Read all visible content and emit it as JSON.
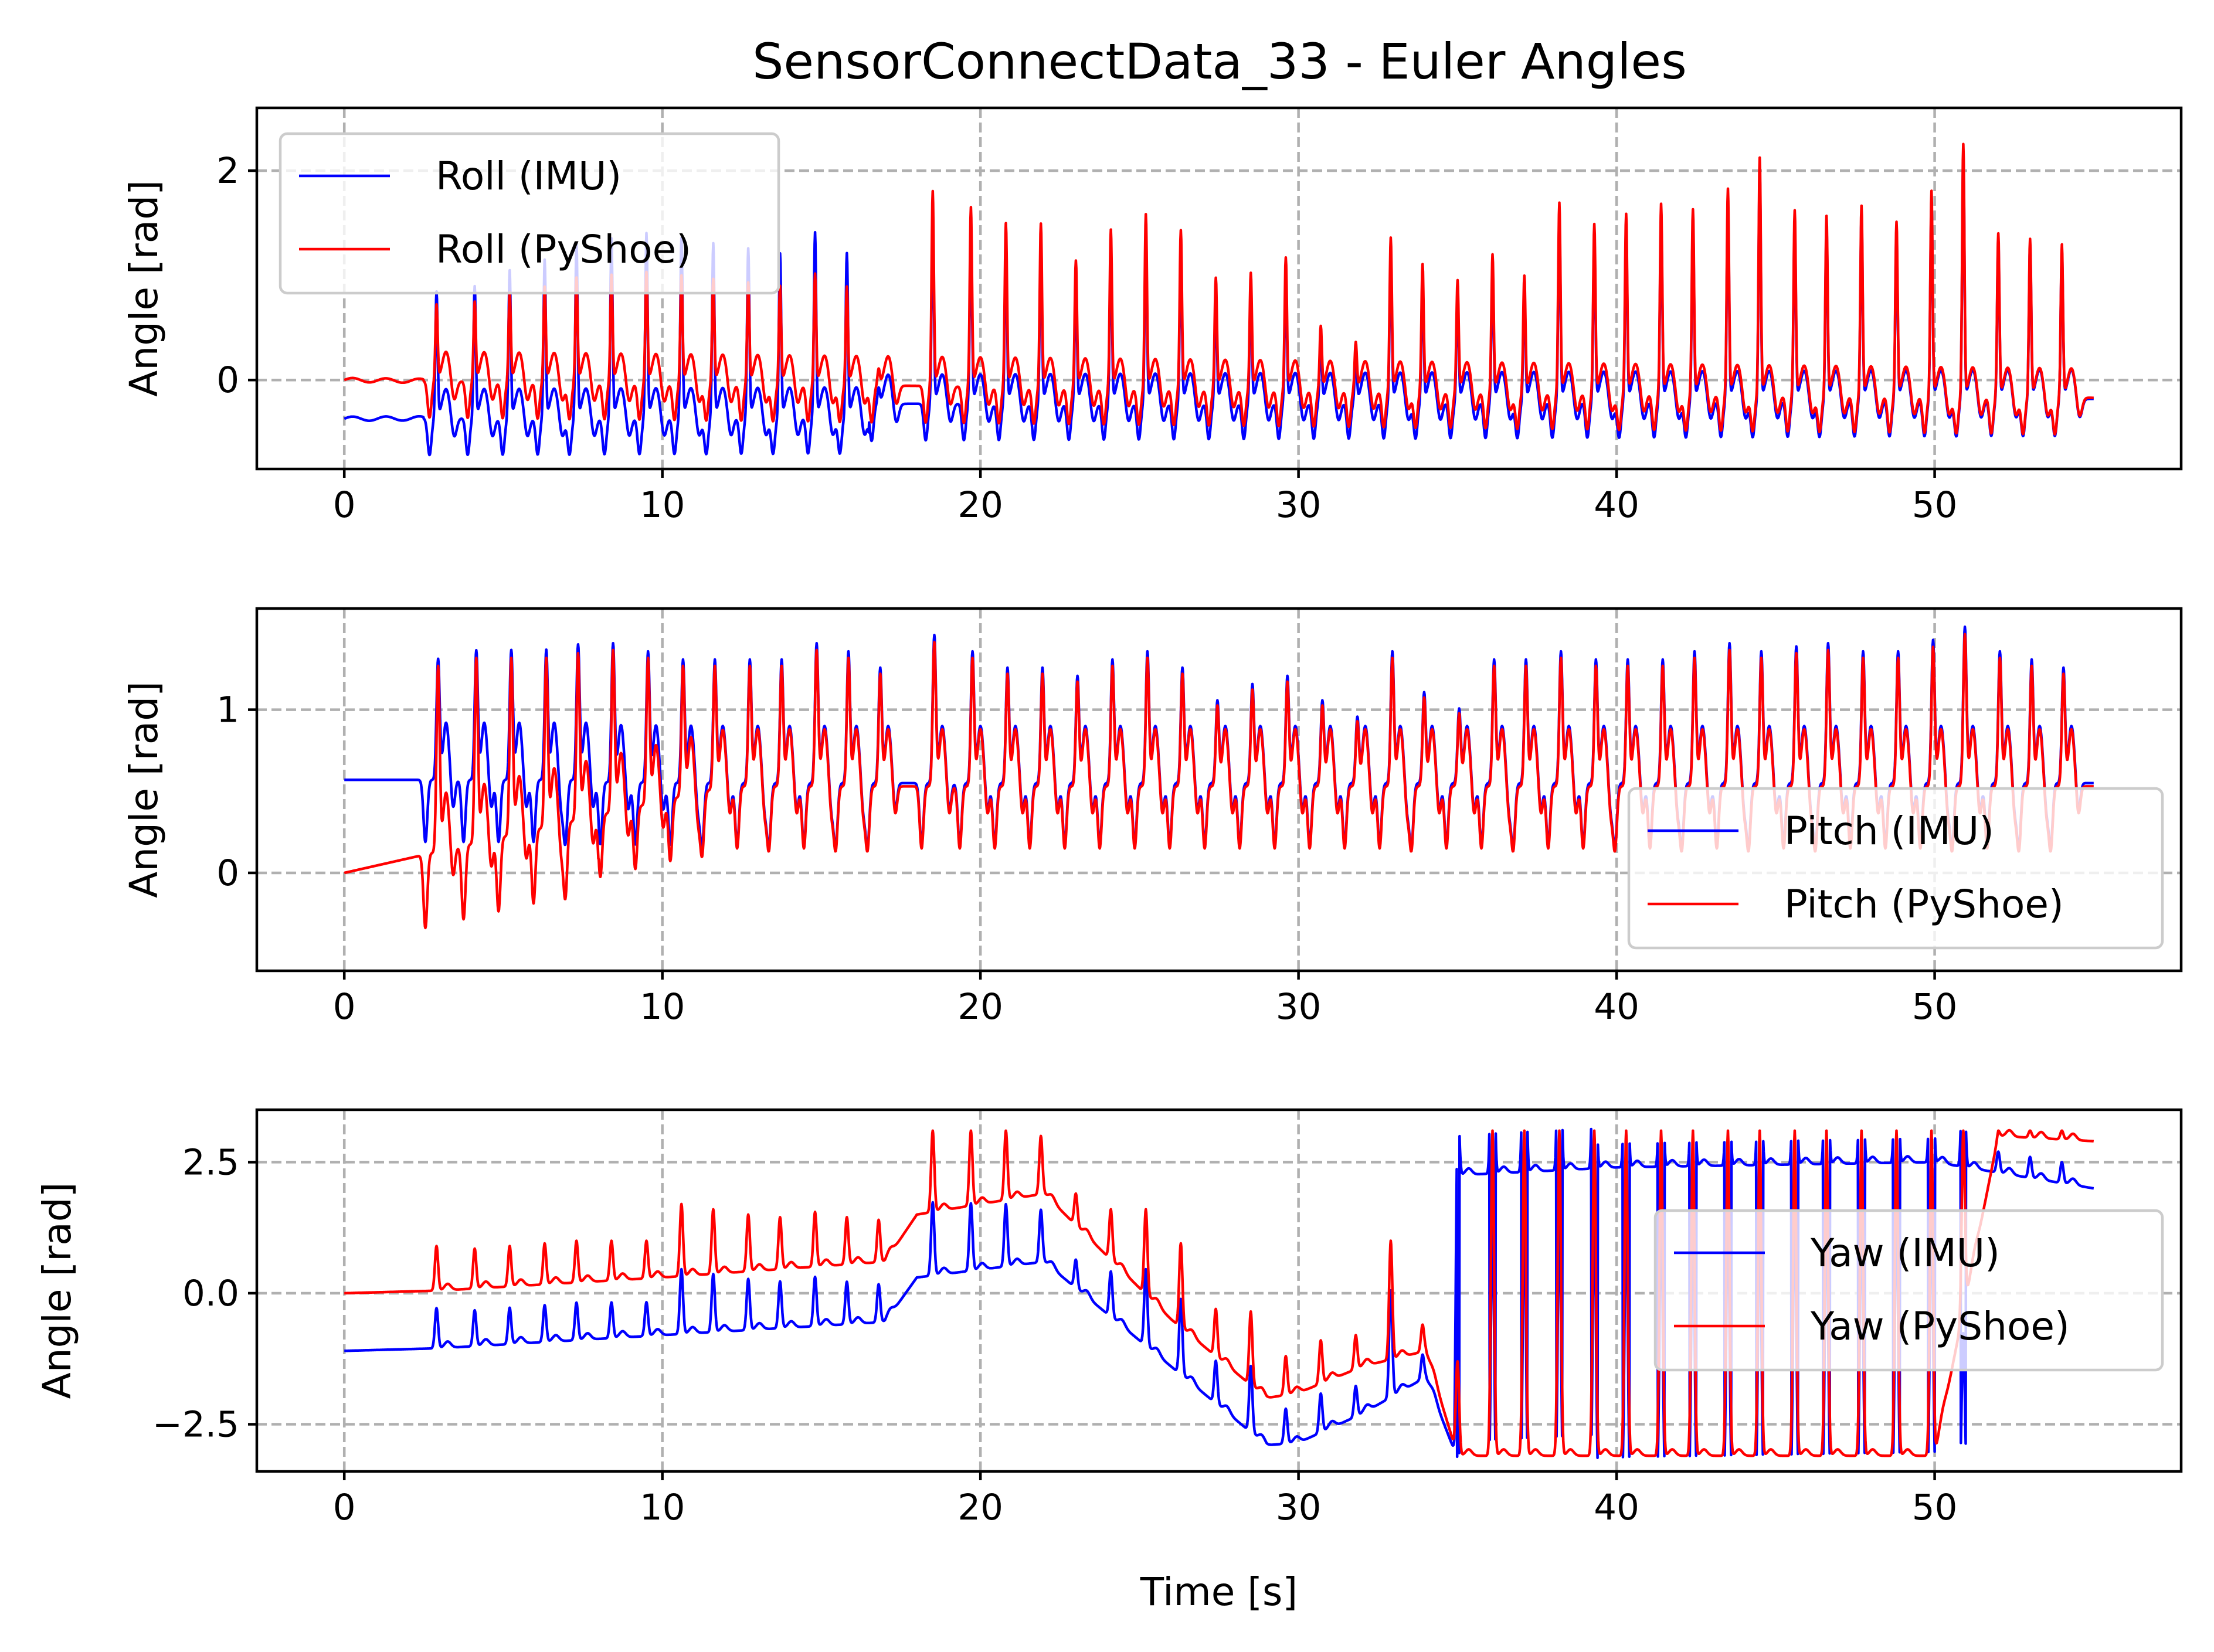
{
  "title": "SensorConnectData_33 - Euler Angles",
  "colors": {
    "imu": "#0000ff",
    "pyshoe": "#ff0000",
    "grid": "#b0b0b0"
  },
  "chart_data": [
    {
      "type": "line",
      "xlabel": "",
      "ylabel": "Angle [rad]",
      "xlim": [
        -2.75,
        57.75
      ],
      "ylim": [
        -0.85,
        2.6
      ],
      "xticks": [
        0,
        10,
        20,
        30,
        40,
        50
      ],
      "xticklabels": [
        "0",
        "10",
        "20",
        "30",
        "40",
        "50"
      ],
      "yticks": [
        0,
        2
      ],
      "yticklabels": [
        "0",
        "2"
      ],
      "grid": true,
      "legend": "upper left",
      "x_start": 0,
      "x_end": 55,
      "series": [
        {
          "name": "Roll (IMU)",
          "color": "#0000ff",
          "signal": {
            "kind": "roll",
            "start": -0.25,
            "end": -0.18,
            "offset_until": 16.5,
            "offset": -0.12,
            "imu_boost": 0.35
          },
          "peaks": [
            [
              2.9,
              1.2
            ],
            [
              4.1,
              1.25
            ],
            [
              5.2,
              1.4
            ],
            [
              6.3,
              1.5
            ],
            [
              7.3,
              1.65
            ],
            [
              8.4,
              1.7
            ],
            [
              9.5,
              1.75
            ],
            [
              10.6,
              1.7
            ],
            [
              11.6,
              1.65
            ],
            [
              12.7,
              1.6
            ],
            [
              13.7,
              1.55
            ],
            [
              14.8,
              1.75
            ],
            [
              15.8,
              1.55
            ],
            [
              16.8,
              0.15
            ],
            [
              18.5,
              1.85
            ],
            [
              19.7,
              1.7
            ],
            [
              20.8,
              1.55
            ],
            [
              21.9,
              1.55
            ],
            [
              23.0,
              1.2
            ],
            [
              24.1,
              1.5
            ],
            [
              25.2,
              1.65
            ],
            [
              26.3,
              1.5
            ],
            [
              27.4,
              1.05
            ],
            [
              28.5,
              1.1
            ],
            [
              29.6,
              1.25
            ],
            [
              30.7,
              0.6
            ],
            [
              31.8,
              0.45
            ],
            [
              32.9,
              1.45
            ],
            [
              33.9,
              1.2
            ],
            [
              35.0,
              1.05
            ],
            [
              36.1,
              1.3
            ],
            [
              37.1,
              1.1
            ],
            [
              38.2,
              1.8
            ],
            [
              39.3,
              1.6
            ],
            [
              40.3,
              1.7
            ],
            [
              41.4,
              1.8
            ],
            [
              42.4,
              1.75
            ],
            [
              43.5,
              1.95
            ],
            [
              44.5,
              2.25
            ],
            [
              45.6,
              1.75
            ],
            [
              46.6,
              1.7
            ],
            [
              47.7,
              1.8
            ],
            [
              48.8,
              1.65
            ],
            [
              49.9,
              1.95
            ],
            [
              50.9,
              2.4
            ],
            [
              52.0,
              1.55
            ],
            [
              53.0,
              1.5
            ],
            [
              54.0,
              1.45
            ]
          ]
        },
        {
          "name": "Roll (PyShoe)",
          "color": "#ff0000",
          "signal": {
            "kind": "roll",
            "start": 0.0,
            "end": -0.17,
            "offset_until": 16.5,
            "offset": 0.0,
            "imu_boost": 0.0
          }
        }
      ]
    },
    {
      "type": "line",
      "xlabel": "",
      "ylabel": "Angle [rad]",
      "xlim": [
        -2.75,
        57.75
      ],
      "ylim": [
        -0.6,
        1.62
      ],
      "xticks": [
        0,
        10,
        20,
        30,
        40,
        50
      ],
      "xticklabels": [
        "0",
        "10",
        "20",
        "30",
        "40",
        "50"
      ],
      "yticks": [
        0,
        1
      ],
      "yticklabels": [
        "0",
        "1"
      ],
      "grid": true,
      "legend": "center right",
      "x_start": 0,
      "x_end": 55,
      "series": [
        {
          "name": "Pitch (IMU)",
          "color": "#0000ff",
          "signal": {
            "kind": "pitch",
            "start": 0.57,
            "end": 0.55,
            "offset_until": 8.0,
            "offset": 0.45,
            "imu_boost": 0.0
          },
          "peaks": [
            [
              2.9,
              1.3
            ],
            [
              4.1,
              1.35
            ],
            [
              5.2,
              1.35
            ],
            [
              6.3,
              1.35
            ],
            [
              7.3,
              1.38
            ],
            [
              8.4,
              1.4
            ],
            [
              9.5,
              1.35
            ],
            [
              10.6,
              1.3
            ],
            [
              11.6,
              1.3
            ],
            [
              12.7,
              1.3
            ],
            [
              13.7,
              1.3
            ],
            [
              14.8,
              1.4
            ],
            [
              15.8,
              1.35
            ],
            [
              16.8,
              1.25
            ],
            [
              18.5,
              1.45
            ],
            [
              19.7,
              1.35
            ],
            [
              20.8,
              1.25
            ],
            [
              21.9,
              1.25
            ],
            [
              23.0,
              1.2
            ],
            [
              24.1,
              1.3
            ],
            [
              25.2,
              1.35
            ],
            [
              26.3,
              1.25
            ],
            [
              27.4,
              1.05
            ],
            [
              28.5,
              1.15
            ],
            [
              29.6,
              1.2
            ],
            [
              30.7,
              1.05
            ],
            [
              31.8,
              0.95
            ],
            [
              32.9,
              1.35
            ],
            [
              33.9,
              1.1
            ],
            [
              35.0,
              1.0
            ],
            [
              36.1,
              1.3
            ],
            [
              37.1,
              1.3
            ],
            [
              38.2,
              1.35
            ],
            [
              39.3,
              1.3
            ],
            [
              40.3,
              1.3
            ],
            [
              41.4,
              1.3
            ],
            [
              42.4,
              1.35
            ],
            [
              43.5,
              1.4
            ],
            [
              44.5,
              1.35
            ],
            [
              45.6,
              1.38
            ],
            [
              46.6,
              1.4
            ],
            [
              47.7,
              1.35
            ],
            [
              48.8,
              1.35
            ],
            [
              49.9,
              1.42
            ],
            [
              50.9,
              1.5
            ],
            [
              52.0,
              1.35
            ],
            [
              53.0,
              1.3
            ],
            [
              54.0,
              1.25
            ]
          ]
        },
        {
          "name": "Pitch (PyShoe)",
          "color": "#ff0000",
          "signal": {
            "kind": "pitch",
            "start": 0.0,
            "end": 0.53,
            "offset_until": 8.0,
            "offset": 0.0,
            "imu_boost": 0.0
          }
        }
      ]
    },
    {
      "type": "line",
      "xlabel": "Time [s]",
      "ylabel": "Angle [rad]",
      "xlim": [
        -2.75,
        57.75
      ],
      "ylim": [
        -3.4,
        3.5
      ],
      "xticks": [
        0,
        10,
        20,
        30,
        40,
        50
      ],
      "xticklabels": [
        "0",
        "10",
        "20",
        "30",
        "40",
        "50"
      ],
      "yticks": [
        2.5,
        0.0,
        -2.5
      ],
      "yticklabels": [
        "2.5",
        "0.0",
        "−2.5"
      ],
      "grid": true,
      "legend": "center right",
      "x_start": 0,
      "x_end": 55,
      "series": [
        {
          "name": "Yaw (IMU)",
          "color": "#0000ff",
          "signal": {
            "kind": "yaw",
            "baseline": [
              [
                0,
                -1.1
              ],
              [
                3,
                -1.05
              ],
              [
                10,
                -0.8
              ],
              [
                17,
                -0.55
              ],
              [
                18,
                0.3
              ],
              [
                22,
                0.6
              ],
              [
                26,
                -1.4
              ],
              [
                29,
                -2.9
              ],
              [
                30,
                -2.85
              ],
              [
                32,
                -2.3
              ],
              [
                34,
                -1.6
              ],
              [
                34.9,
                -3.0
              ],
              [
                35.0,
                2.25
              ],
              [
                40,
                2.4
              ],
              [
                50,
                2.5
              ],
              [
                55,
                2.0
              ]
            ]
          }
        },
        {
          "name": "Yaw (PyShoe)",
          "color": "#ff0000",
          "signal": {
            "kind": "yaw",
            "baseline": [
              [
                0,
                0.0
              ],
              [
                3,
                0.05
              ],
              [
                10,
                0.3
              ],
              [
                17,
                0.6
              ],
              [
                18,
                1.5
              ],
              [
                22,
                1.9
              ],
              [
                26,
                -0.5
              ],
              [
                29,
                -2.0
              ],
              [
                30,
                -1.9
              ],
              [
                32,
                -1.4
              ],
              [
                34,
                -1.1
              ],
              [
                35,
                -3.1
              ],
              [
                44,
                -3.1
              ],
              [
                50,
                -3.1
              ],
              [
                52,
                3.0
              ],
              [
                55,
                2.9
              ]
            ]
          },
          "peaks": [
            [
              2.9,
              0.9
            ],
            [
              4.1,
              0.85
            ],
            [
              5.2,
              0.9
            ],
            [
              6.3,
              0.95
            ],
            [
              7.3,
              1.0
            ],
            [
              8.4,
              1.0
            ],
            [
              9.5,
              1.0
            ],
            [
              10.6,
              1.7
            ],
            [
              11.6,
              1.6
            ],
            [
              12.7,
              1.5
            ],
            [
              13.7,
              1.45
            ],
            [
              14.8,
              1.55
            ],
            [
              15.8,
              1.45
            ],
            [
              16.8,
              1.4
            ],
            [
              18.5,
              3.1
            ],
            [
              19.7,
              3.1
            ],
            [
              20.8,
              3.1
            ],
            [
              21.9,
              3.0
            ],
            [
              23.0,
              1.9
            ],
            [
              24.1,
              1.6
            ],
            [
              25.2,
              1.6
            ],
            [
              26.3,
              0.95
            ],
            [
              27.4,
              -0.3
            ],
            [
              28.5,
              -0.35
            ],
            [
              29.6,
              -1.2
            ],
            [
              30.7,
              -0.9
            ],
            [
              31.8,
              -0.8
            ],
            [
              32.9,
              1.0
            ],
            [
              33.9,
              -0.6
            ],
            [
              35.0,
              -1.3
            ],
            [
              36.1,
              3.1
            ],
            [
              37.1,
              3.1
            ],
            [
              38.2,
              3.1
            ],
            [
              39.3,
              3.1
            ],
            [
              40.3,
              3.1
            ],
            [
              41.4,
              3.1
            ],
            [
              42.4,
              3.1
            ],
            [
              43.5,
              3.1
            ],
            [
              44.5,
              3.1
            ],
            [
              45.6,
              3.1
            ],
            [
              46.6,
              3.1
            ],
            [
              47.7,
              3.1
            ],
            [
              48.8,
              3.1
            ],
            [
              49.9,
              3.1
            ],
            [
              50.9,
              3.1
            ],
            [
              52.0,
              3.1
            ],
            [
              53.0,
              3.1
            ],
            [
              54.0,
              3.1
            ]
          ]
        }
      ]
    }
  ],
  "legends": [
    {
      "items": [
        {
          "label": "Roll (IMU)",
          "color": "#0000ff"
        },
        {
          "label": "Roll (PyShoe)",
          "color": "#ff0000"
        }
      ]
    },
    {
      "items": [
        {
          "label": "Pitch (IMU)",
          "color": "#0000ff"
        },
        {
          "label": "Pitch (PyShoe)",
          "color": "#ff0000"
        }
      ]
    },
    {
      "items": [
        {
          "label": "Yaw (IMU)",
          "color": "#0000ff"
        },
        {
          "label": "Yaw (PyShoe)",
          "color": "#ff0000"
        }
      ]
    }
  ]
}
